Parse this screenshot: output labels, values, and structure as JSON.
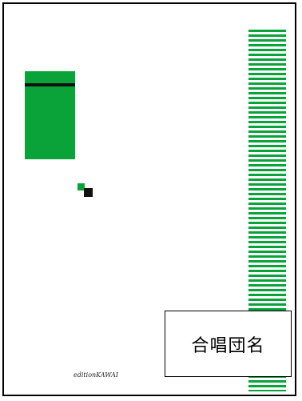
{
  "cover": {
    "choir_name": "合唱団名",
    "publisher": "editionKAWAI"
  },
  "colors": {
    "accent_green": "#0aa33a",
    "dark": "#111111",
    "background": "#ffffff",
    "border": "#000000"
  }
}
